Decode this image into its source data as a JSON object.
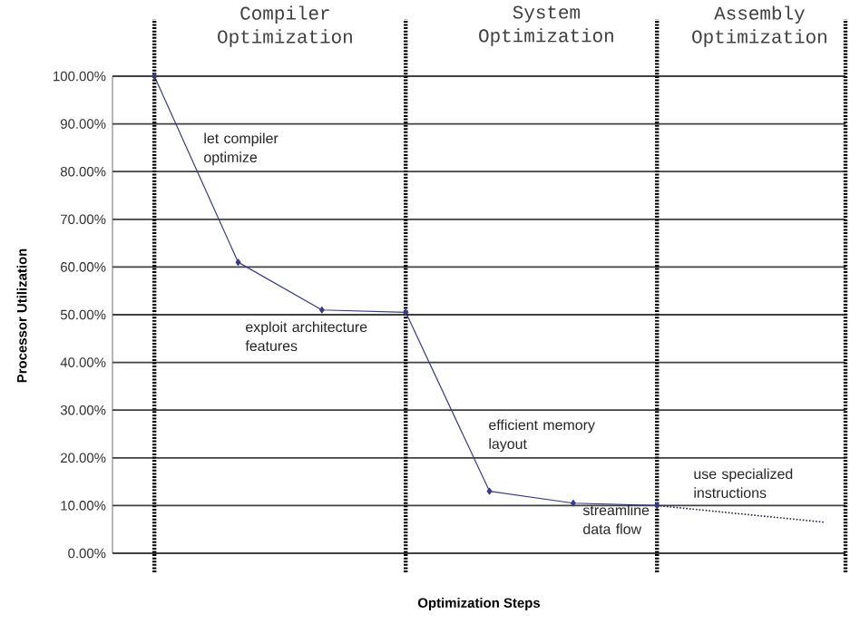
{
  "chart_data": {
    "type": "line",
    "xlabel": "Optimization Steps",
    "ylabel": "Processor Utilization",
    "categories": [
      null,
      null,
      null,
      null,
      null,
      null,
      null,
      null,
      null
    ],
    "series": [
      {
        "color": "#3a3a8c",
        "values": [
          100,
          61,
          51,
          50.5,
          13,
          10.5,
          10,
          null,
          null
        ]
      },
      {
        "color": "#222244",
        "line_style": "dotted",
        "marker": "none",
        "values": [
          null,
          null,
          null,
          null,
          null,
          null,
          10,
          null,
          6.5
        ]
      }
    ],
    "ylim": [
      0,
      100
    ],
    "yticks": [
      {
        "value": 0,
        "label": "0.00%"
      },
      {
        "value": 10,
        "label": "10.00%"
      },
      {
        "value": 20,
        "label": "20.00%"
      },
      {
        "value": 30,
        "label": "30.00%"
      },
      {
        "value": 40,
        "label": "40.00%"
      },
      {
        "value": 50,
        "label": "50.00%"
      },
      {
        "value": 60,
        "label": "60.00%"
      },
      {
        "value": 70,
        "label": "70.00%"
      },
      {
        "value": 80,
        "label": "80.00%"
      },
      {
        "value": 90,
        "label": "90.00%"
      },
      {
        "value": 100,
        "label": "100.00%"
      }
    ],
    "tick_labels": "y",
    "grid": true,
    "marker": "diamond",
    "line_style": "solid",
    "annotations": [
      "Compiler Optimization",
      "System Optimization",
      "Assembly Optimization",
      "let compiler optimize",
      "exploit architecture features",
      "efficient memory layout",
      "streamline data flow",
      "use specialized instructions"
    ]
  }
}
